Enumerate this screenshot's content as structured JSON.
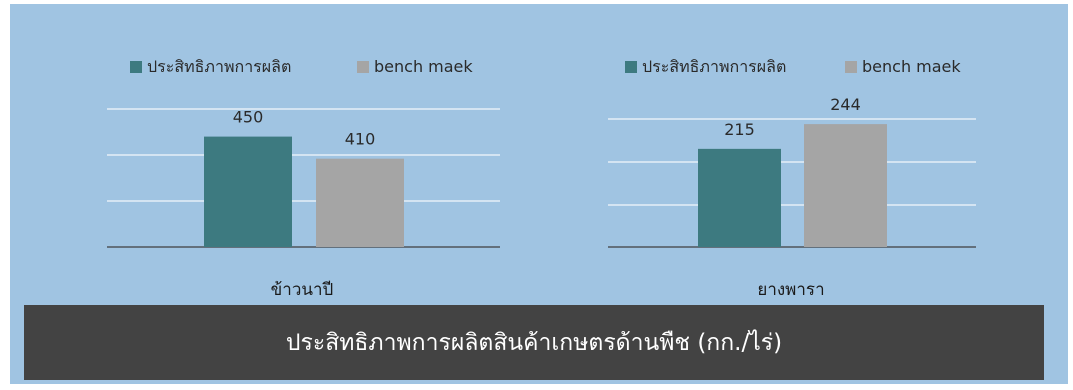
{
  "colors": {
    "panel": "#a0c4e2",
    "series1": "#3d7a80",
    "series2": "#a5a5a5",
    "grid": "#e6eef7",
    "axis": "#3f3f3f",
    "footer": "#434343"
  },
  "footer_title": "ประสิทธิภาพการผลิตสินค้าเกษตรด้านพืช (กก./ไร่)",
  "chart_data": [
    {
      "type": "bar",
      "categories": [
        "ข้าวนาปี"
      ],
      "series": [
        {
          "name": "ประสิทธิภาพการผลิต",
          "values": [
            450
          ]
        },
        {
          "name": "bench maek",
          "values": [
            410
          ]
        }
      ],
      "legend": "top",
      "grid": true
    },
    {
      "type": "bar",
      "categories": [
        "ยางพารา"
      ],
      "series": [
        {
          "name": "ประสิทธิภาพการผลิต",
          "values": [
            215
          ]
        },
        {
          "name": "bench maek",
          "values": [
            244
          ]
        }
      ],
      "legend": "top",
      "grid": true
    }
  ]
}
